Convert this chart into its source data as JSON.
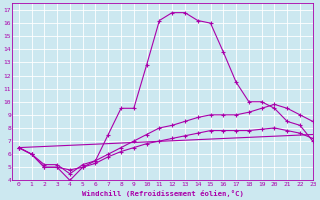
{
  "xlabel": "Windchill (Refroidissement éolien,°C)",
  "bg_color": "#cce8f0",
  "line_color": "#aa00aa",
  "grid_color": "#ffffff",
  "xlim": [
    -0.5,
    23
  ],
  "ylim": [
    4,
    17.5
  ],
  "xticks": [
    0,
    1,
    2,
    3,
    4,
    5,
    6,
    7,
    8,
    9,
    10,
    11,
    12,
    13,
    14,
    15,
    16,
    17,
    18,
    19,
    20,
    21,
    22,
    23
  ],
  "yticks": [
    4,
    5,
    6,
    7,
    8,
    9,
    10,
    11,
    12,
    13,
    14,
    15,
    16,
    17
  ],
  "series": [
    {
      "x": [
        0,
        1,
        2,
        3,
        4,
        5,
        6,
        7,
        8,
        9,
        10,
        11,
        12,
        13,
        14,
        15,
        16,
        17,
        18,
        19,
        20,
        21,
        22,
        23
      ],
      "y": [
        6.5,
        6.0,
        5.0,
        5.0,
        4.0,
        5.0,
        5.5,
        7.5,
        9.5,
        9.5,
        12.8,
        16.2,
        16.8,
        16.8,
        16.2,
        16.0,
        13.8,
        11.5,
        10.0,
        10.0,
        9.5,
        8.5,
        8.2,
        7.0
      ],
      "marker": true
    },
    {
      "x": [
        0,
        1,
        2,
        3,
        4,
        5,
        6,
        7,
        8,
        9,
        10,
        11,
        12,
        13,
        14,
        15,
        16,
        17,
        18,
        19,
        20,
        21,
        22,
        23
      ],
      "y": [
        6.5,
        6.0,
        5.2,
        5.2,
        4.5,
        5.2,
        5.5,
        6.0,
        6.5,
        7.0,
        7.5,
        8.0,
        8.2,
        8.5,
        8.8,
        9.0,
        9.0,
        9.0,
        9.2,
        9.5,
        9.8,
        9.5,
        9.0,
        8.5
      ],
      "marker": true
    },
    {
      "x": [
        0,
        1,
        2,
        3,
        4,
        5,
        6,
        7,
        8,
        9,
        10,
        11,
        12,
        13,
        14,
        15,
        16,
        17,
        18,
        19,
        20,
        21,
        22,
        23
      ],
      "y": [
        6.5,
        6.0,
        5.0,
        5.0,
        4.8,
        5.0,
        5.3,
        5.8,
        6.2,
        6.5,
        6.8,
        7.0,
        7.2,
        7.4,
        7.6,
        7.8,
        7.8,
        7.8,
        7.8,
        7.9,
        8.0,
        7.8,
        7.6,
        7.2
      ],
      "marker": true
    },
    {
      "x": [
        0,
        23
      ],
      "y": [
        6.5,
        7.5
      ],
      "marker": false
    }
  ]
}
